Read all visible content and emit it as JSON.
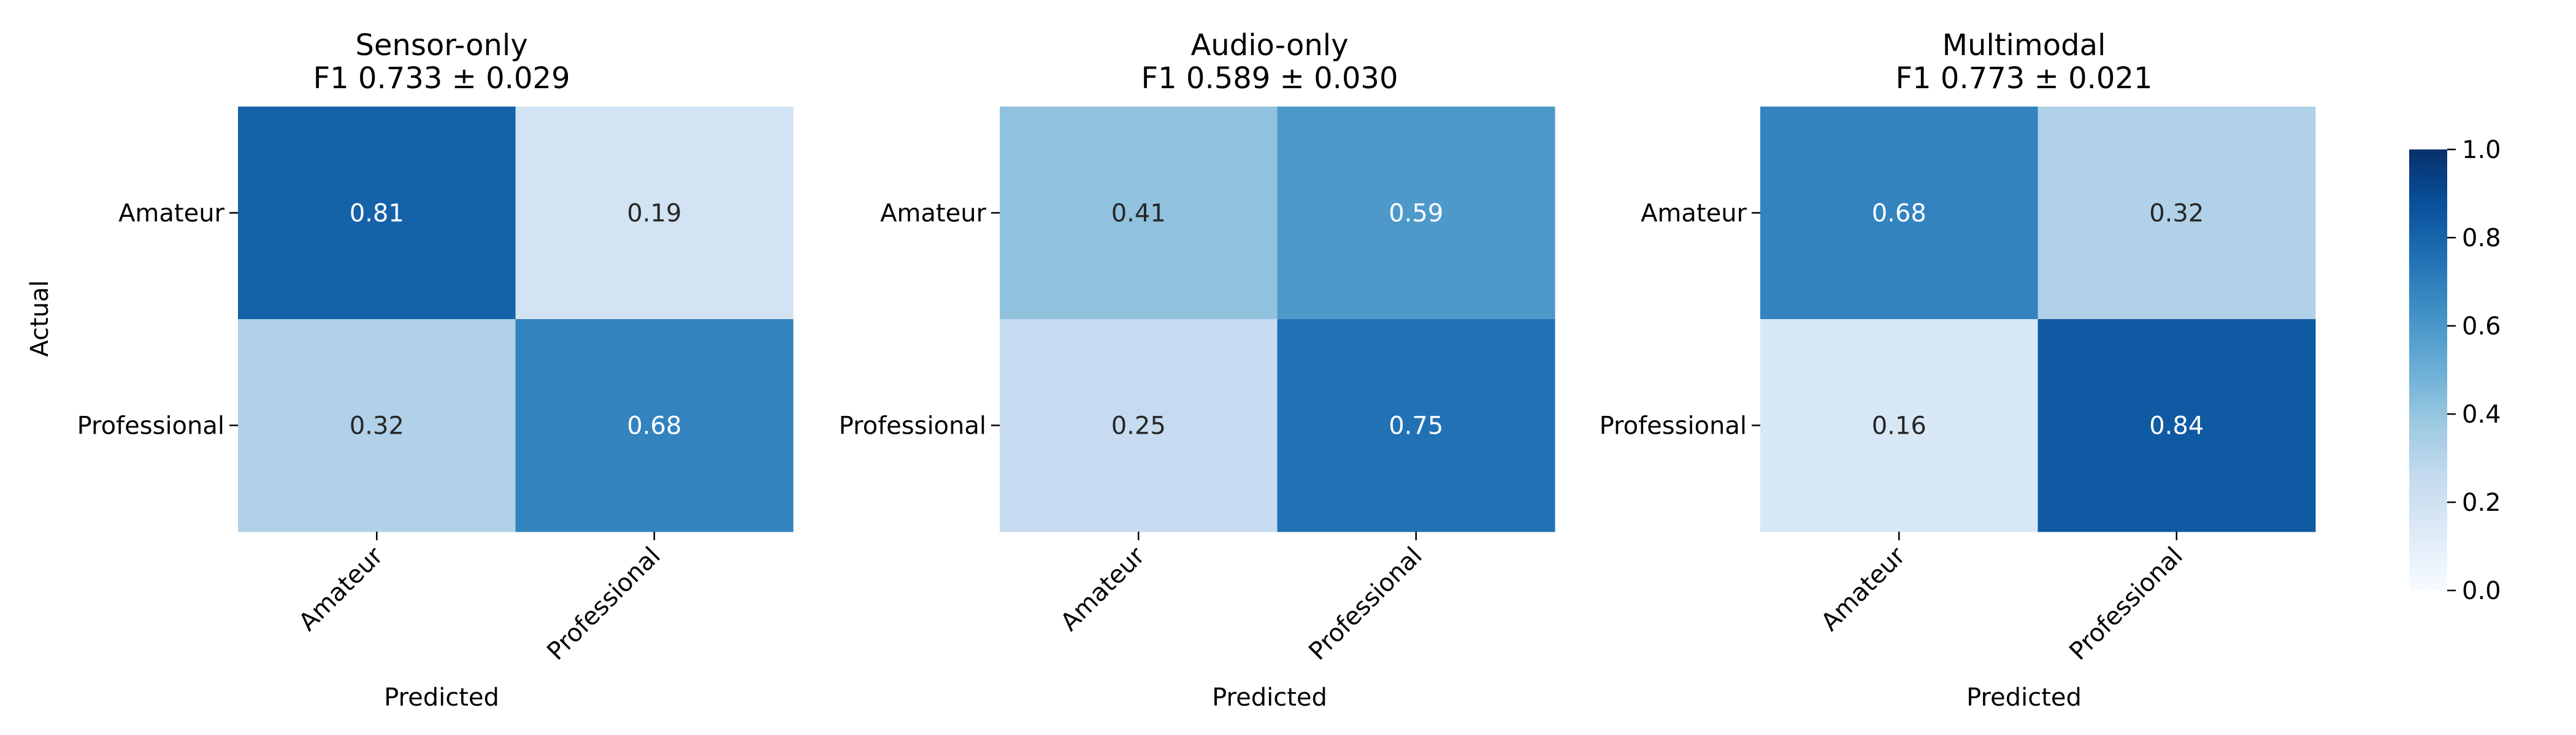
{
  "chart_data": [
    {
      "type": "heatmap",
      "title": "Sensor-only",
      "subtitle": "F1 0.733 ± 0.029",
      "xlabel": "Predicted",
      "ylabel": "Actual",
      "x_categories": [
        "Amateur",
        "Professional"
      ],
      "y_categories": [
        "Amateur",
        "Professional"
      ],
      "values": [
        [
          0.81,
          0.19
        ],
        [
          0.32,
          0.68
        ]
      ],
      "value_labels": [
        [
          "0.81",
          "0.19"
        ],
        [
          "0.32",
          "0.68"
        ]
      ]
    },
    {
      "type": "heatmap",
      "title": "Audio-only",
      "subtitle": "F1 0.589 ± 0.030",
      "xlabel": "Predicted",
      "ylabel": "",
      "x_categories": [
        "Amateur",
        "Professional"
      ],
      "y_categories": [
        "Amateur",
        "Professional"
      ],
      "values": [
        [
          0.41,
          0.59
        ],
        [
          0.25,
          0.75
        ]
      ],
      "value_labels": [
        [
          "0.41",
          "0.59"
        ],
        [
          "0.25",
          "0.75"
        ]
      ]
    },
    {
      "type": "heatmap",
      "title": "Multimodal",
      "subtitle": "F1 0.773 ± 0.021",
      "xlabel": "Predicted",
      "ylabel": "",
      "x_categories": [
        "Amateur",
        "Professional"
      ],
      "y_categories": [
        "Amateur",
        "Professional"
      ],
      "values": [
        [
          0.68,
          0.32
        ],
        [
          0.16,
          0.84
        ]
      ],
      "value_labels": [
        [
          "0.68",
          "0.32"
        ],
        [
          "0.16",
          "0.84"
        ]
      ]
    }
  ],
  "colorbar": {
    "colormap": "Blues",
    "range": [
      0.0,
      1.0
    ],
    "ticks": [
      "0.0",
      "0.2",
      "0.4",
      "0.6",
      "0.8",
      "1.0"
    ]
  },
  "colors": {
    "text_dark": "#262626",
    "text_light": "#ffffff",
    "tick": "#000000"
  }
}
